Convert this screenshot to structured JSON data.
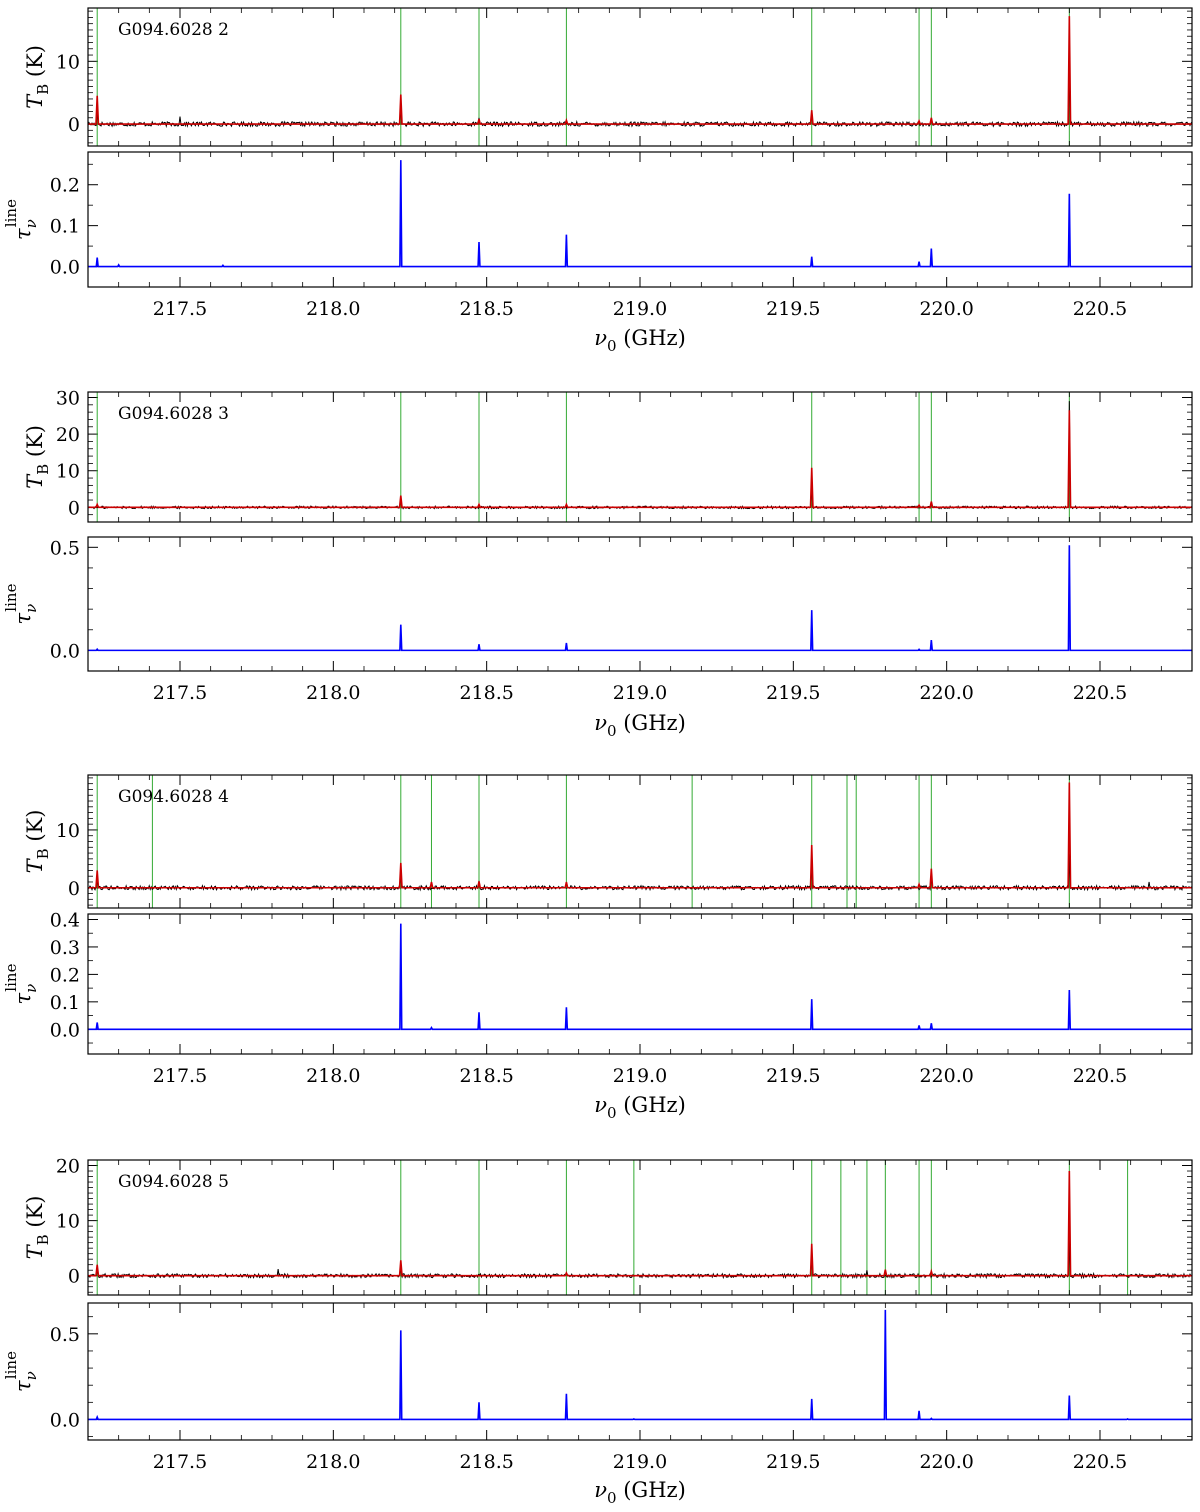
{
  "figure": {
    "xlabel": "ν0 (GHz)",
    "xlabel_main": "ν",
    "xlabel_sub": "0",
    "xlabel_unit": " (GHz)",
    "ylabel_top": "TB (K)",
    "ylabel_top_main": "T",
    "ylabel_top_sub": "B",
    "ylabel_top_unit": " (K)",
    "ylabel_bottom": "τνline",
    "ylabel_bottom_main": "τ",
    "ylabel_bottom_sub": "ν",
    "ylabel_bottom_sup": "line",
    "xlim": [
      217.2,
      220.8
    ],
    "xticks": [
      217.5,
      218.0,
      218.5,
      219.0,
      219.5,
      220.0,
      220.5
    ],
    "xtick_labels": [
      "217.5",
      "218.0",
      "218.5",
      "219.0",
      "219.5",
      "220.0",
      "220.5"
    ],
    "colors": {
      "observed": "#000000",
      "model": "#cc0000",
      "tau": "#0000ff",
      "line_markers": "#33aa33"
    }
  },
  "chart_data": [
    {
      "type": "line",
      "panel": "G094.6028 2",
      "label": "G094.6028 2",
      "top": {
        "ylim": [
          -3.5,
          18.5
        ],
        "yticks": [
          0,
          10
        ],
        "ytick_labels": [
          "0",
          "10"
        ],
        "line_markers_ghz": [
          217.23,
          218.22,
          218.475,
          218.76,
          219.56,
          219.91,
          219.95,
          220.4
        ],
        "model_peaks": [
          [
            217.23,
            4.5
          ],
          [
            218.22,
            4.7
          ],
          [
            218.475,
            0.8
          ],
          [
            218.76,
            0.6
          ],
          [
            219.56,
            2.2
          ],
          [
            219.91,
            0.5
          ],
          [
            219.95,
            1.0
          ],
          [
            220.4,
            17.2
          ]
        ],
        "observed_peaks": [
          [
            217.23,
            2.2
          ],
          [
            217.5,
            1.2
          ],
          [
            218.22,
            3.0
          ],
          [
            218.475,
            1.0
          ],
          [
            219.56,
            1.8
          ],
          [
            219.95,
            0.9
          ],
          [
            220.4,
            9.6
          ]
        ],
        "noise_rms": 0.35
      },
      "bottom": {
        "ylim": [
          -0.05,
          0.28
        ],
        "yticks": [
          0.0,
          0.1,
          0.2
        ],
        "ytick_labels": [
          "0.0",
          "0.1",
          "0.2"
        ],
        "tau_peaks": [
          [
            217.23,
            0.022
          ],
          [
            217.3,
            0.004
          ],
          [
            217.64,
            0.003
          ],
          [
            218.22,
            0.26
          ],
          [
            218.475,
            0.06
          ],
          [
            218.76,
            0.078
          ],
          [
            219.56,
            0.024
          ],
          [
            219.91,
            0.012
          ],
          [
            219.95,
            0.044
          ],
          [
            220.4,
            0.178
          ]
        ]
      }
    },
    {
      "type": "line",
      "panel": "G094.6028 3",
      "label": "G094.6028 3",
      "top": {
        "ylim": [
          -4,
          31.5
        ],
        "yticks": [
          0,
          10,
          20,
          30
        ],
        "ytick_labels": [
          "0",
          "10",
          "20",
          "30"
        ],
        "line_markers_ghz": [
          217.23,
          218.22,
          218.475,
          218.76,
          219.56,
          219.91,
          219.95,
          220.4
        ],
        "model_peaks": [
          [
            217.23,
            0.8
          ],
          [
            218.22,
            3.2
          ],
          [
            218.475,
            0.8
          ],
          [
            218.76,
            0.8
          ],
          [
            219.56,
            10.8
          ],
          [
            219.91,
            0.6
          ],
          [
            219.95,
            1.6
          ],
          [
            220.4,
            26.5
          ]
        ],
        "observed_peaks": [
          [
            218.22,
            2.4
          ],
          [
            219.56,
            6.5
          ],
          [
            219.95,
            1.2
          ],
          [
            220.4,
            29.0
          ]
        ],
        "noise_rms": 0.35
      },
      "bottom": {
        "ylim": [
          -0.1,
          0.55
        ],
        "yticks": [
          0.0,
          0.5
        ],
        "ytick_labels": [
          "0.0",
          "0.5"
        ],
        "tau_peaks": [
          [
            217.23,
            0.006
          ],
          [
            218.22,
            0.125
          ],
          [
            218.475,
            0.03
          ],
          [
            218.76,
            0.036
          ],
          [
            219.56,
            0.195
          ],
          [
            219.91,
            0.005
          ],
          [
            219.95,
            0.05
          ],
          [
            220.4,
            0.51
          ]
        ]
      }
    },
    {
      "type": "line",
      "panel": "G094.6028 4",
      "label": "G094.6028 4",
      "top": {
        "ylim": [
          -3.5,
          19.5
        ],
        "yticks": [
          0,
          10
        ],
        "ytick_labels": [
          "0",
          "10"
        ],
        "line_markers_ghz": [
          217.23,
          217.41,
          218.22,
          218.32,
          218.475,
          218.76,
          219.17,
          219.56,
          219.675,
          219.705,
          219.91,
          219.95,
          220.4
        ],
        "model_peaks": [
          [
            217.23,
            3.0
          ],
          [
            218.22,
            4.3
          ],
          [
            218.32,
            1.0
          ],
          [
            218.475,
            1.1
          ],
          [
            218.76,
            1.0
          ],
          [
            219.56,
            7.4
          ],
          [
            219.91,
            0.6
          ],
          [
            219.95,
            3.3
          ],
          [
            220.4,
            18.2
          ]
        ],
        "observed_peaks": [
          [
            217.23,
            1.6
          ],
          [
            218.22,
            2.8
          ],
          [
            218.475,
            1.2
          ],
          [
            219.56,
            5.0
          ],
          [
            219.95,
            2.2
          ],
          [
            220.4,
            5.8
          ],
          [
            220.66,
            1.0
          ]
        ],
        "noise_rms": 0.35
      },
      "bottom": {
        "ylim": [
          -0.09,
          0.42
        ],
        "yticks": [
          0.0,
          0.1,
          0.2,
          0.3,
          0.4
        ],
        "ytick_labels": [
          "0.0",
          "0.1",
          "0.2",
          "0.3",
          "0.4"
        ],
        "tau_peaks": [
          [
            217.23,
            0.025
          ],
          [
            218.22,
            0.385
          ],
          [
            218.32,
            0.006
          ],
          [
            218.475,
            0.062
          ],
          [
            218.76,
            0.08
          ],
          [
            219.56,
            0.11
          ],
          [
            219.91,
            0.014
          ],
          [
            219.95,
            0.022
          ],
          [
            220.4,
            0.143
          ]
        ]
      }
    },
    {
      "type": "line",
      "panel": "G094.6028 5",
      "label": "G094.6028 5",
      "top": {
        "ylim": [
          -3.5,
          21.0
        ],
        "yticks": [
          0,
          10,
          20
        ],
        "ytick_labels": [
          "0",
          "10",
          "20"
        ],
        "line_markers_ghz": [
          217.23,
          218.22,
          218.475,
          218.76,
          218.98,
          219.56,
          219.655,
          219.74,
          219.8,
          219.91,
          219.95,
          220.4,
          220.59
        ],
        "model_peaks": [
          [
            217.23,
            2.0
          ],
          [
            218.22,
            2.8
          ],
          [
            218.76,
            0.5
          ],
          [
            219.56,
            5.8
          ],
          [
            219.8,
            1.1
          ],
          [
            219.95,
            0.8
          ],
          [
            220.4,
            19.0
          ]
        ],
        "observed_peaks": [
          [
            217.23,
            1.2
          ],
          [
            217.82,
            1.2
          ],
          [
            218.22,
            1.6
          ],
          [
            219.56,
            4.2
          ],
          [
            219.74,
            1.0
          ],
          [
            220.4,
            6.5
          ]
        ],
        "noise_rms": 0.35
      },
      "bottom": {
        "ylim": [
          -0.12,
          0.68
        ],
        "yticks": [
          0.0,
          0.5
        ],
        "ytick_labels": [
          "0.0",
          "0.5"
        ],
        "tau_peaks": [
          [
            217.23,
            0.014
          ],
          [
            218.22,
            0.52
          ],
          [
            218.475,
            0.1
          ],
          [
            218.76,
            0.15
          ],
          [
            218.98,
            0.003
          ],
          [
            219.56,
            0.12
          ],
          [
            219.8,
            0.64
          ],
          [
            219.91,
            0.05
          ],
          [
            219.95,
            0.006
          ],
          [
            220.4,
            0.14
          ],
          [
            220.59,
            0.003
          ]
        ]
      }
    }
  ]
}
